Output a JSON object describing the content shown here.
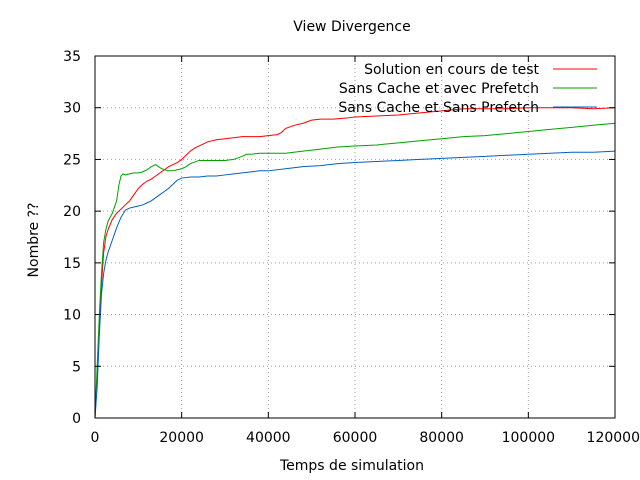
{
  "chart_data": {
    "type": "line",
    "title": "View Divergence",
    "xlabel": "Temps de simulation",
    "ylabel": "Nombre ??",
    "xlim": [
      0,
      120000
    ],
    "ylim": [
      0,
      35
    ],
    "xticks": [
      0,
      20000,
      40000,
      60000,
      80000,
      100000,
      120000
    ],
    "yticks": [
      0,
      5,
      10,
      15,
      20,
      25,
      30,
      35
    ],
    "grid": true,
    "legend_position": "top-right",
    "series": [
      {
        "name": "Solution en cours de test",
        "color": "#ff0000",
        "x": [
          0,
          500,
          1000,
          1500,
          2000,
          2500,
          3000,
          4000,
          5000,
          6000,
          7000,
          8000,
          9000,
          10000,
          11000,
          12000,
          13000,
          14000,
          15000,
          16000,
          17000,
          18000,
          19000,
          20000,
          21000,
          22000,
          23000,
          24000,
          25000,
          26000,
          27000,
          28000,
          30000,
          32000,
          34000,
          36000,
          38000,
          40000,
          42000,
          43000,
          44000,
          46000,
          48000,
          50000,
          52000,
          55000,
          58000,
          60000,
          65000,
          70000,
          75000,
          80000,
          85000,
          90000,
          95000,
          100000,
          105000,
          110000,
          115000,
          120000
        ],
        "y": [
          0,
          4,
          9,
          13,
          16,
          17.5,
          18.2,
          19.2,
          19.8,
          20.2,
          20.6,
          21.0,
          21.6,
          22.2,
          22.6,
          22.9,
          23.1,
          23.4,
          23.7,
          24.0,
          24.3,
          24.5,
          24.7,
          25.0,
          25.4,
          25.8,
          26.1,
          26.3,
          26.5,
          26.7,
          26.8,
          26.9,
          27.0,
          27.1,
          27.2,
          27.2,
          27.2,
          27.3,
          27.4,
          27.6,
          28.0,
          28.3,
          28.5,
          28.8,
          28.9,
          28.9,
          29.0,
          29.1,
          29.2,
          29.3,
          29.5,
          29.7,
          29.9,
          29.9,
          29.9,
          30.0,
          30.0,
          30.0,
          29.9,
          30.0
        ]
      },
      {
        "name": "Sans Cache et avec Prefetch",
        "color": "#00a000",
        "x": [
          0,
          500,
          1000,
          1500,
          2000,
          2500,
          3000,
          4000,
          5000,
          5500,
          6000,
          6500,
          7000,
          8000,
          9000,
          10000,
          11000,
          12000,
          13000,
          14000,
          15000,
          16000,
          17000,
          18000,
          19000,
          20000,
          21000,
          22000,
          24000,
          26000,
          28000,
          30000,
          32000,
          34000,
          35000,
          36000,
          38000,
          40000,
          44000,
          48000,
          52000,
          56000,
          60000,
          65000,
          70000,
          75000,
          80000,
          85000,
          90000,
          95000,
          100000,
          105000,
          110000,
          115000,
          120000
        ],
        "y": [
          0,
          5,
          10,
          14,
          17,
          18.2,
          19.0,
          19.8,
          21.0,
          22.5,
          23.4,
          23.6,
          23.5,
          23.6,
          23.7,
          23.7,
          23.8,
          24.0,
          24.3,
          24.5,
          24.2,
          24.0,
          23.9,
          23.9,
          24.0,
          24.1,
          24.3,
          24.6,
          24.9,
          24.9,
          24.9,
          24.9,
          25.0,
          25.3,
          25.5,
          25.5,
          25.6,
          25.6,
          25.6,
          25.8,
          26.0,
          26.2,
          26.3,
          26.4,
          26.6,
          26.8,
          27.0,
          27.2,
          27.3,
          27.5,
          27.7,
          27.9,
          28.1,
          28.3,
          28.5
        ]
      },
      {
        "name": "Sans Cache et Sans Prefetch",
        "color": "#0060c0",
        "x": [
          0,
          500,
          1000,
          1500,
          2000,
          2500,
          3000,
          4000,
          5000,
          6000,
          7000,
          8000,
          9000,
          10000,
          11000,
          12000,
          13000,
          14000,
          15000,
          16000,
          17000,
          18000,
          19000,
          20000,
          22000,
          24000,
          26000,
          28000,
          30000,
          32000,
          34000,
          36000,
          38000,
          40000,
          44000,
          48000,
          52000,
          56000,
          60000,
          65000,
          70000,
          75000,
          80000,
          85000,
          90000,
          95000,
          100000,
          105000,
          110000,
          115000,
          120000
        ],
        "y": [
          0,
          3,
          8,
          12,
          14,
          15.2,
          16.0,
          17.2,
          18.4,
          19.4,
          20.1,
          20.3,
          20.4,
          20.5,
          20.6,
          20.8,
          21.0,
          21.3,
          21.6,
          21.9,
          22.2,
          22.6,
          23.0,
          23.2,
          23.3,
          23.3,
          23.4,
          23.4,
          23.5,
          23.6,
          23.7,
          23.8,
          23.9,
          23.9,
          24.1,
          24.3,
          24.4,
          24.6,
          24.7,
          24.8,
          24.9,
          25.0,
          25.1,
          25.2,
          25.3,
          25.4,
          25.5,
          25.6,
          25.7,
          25.7,
          25.8
        ]
      }
    ]
  }
}
